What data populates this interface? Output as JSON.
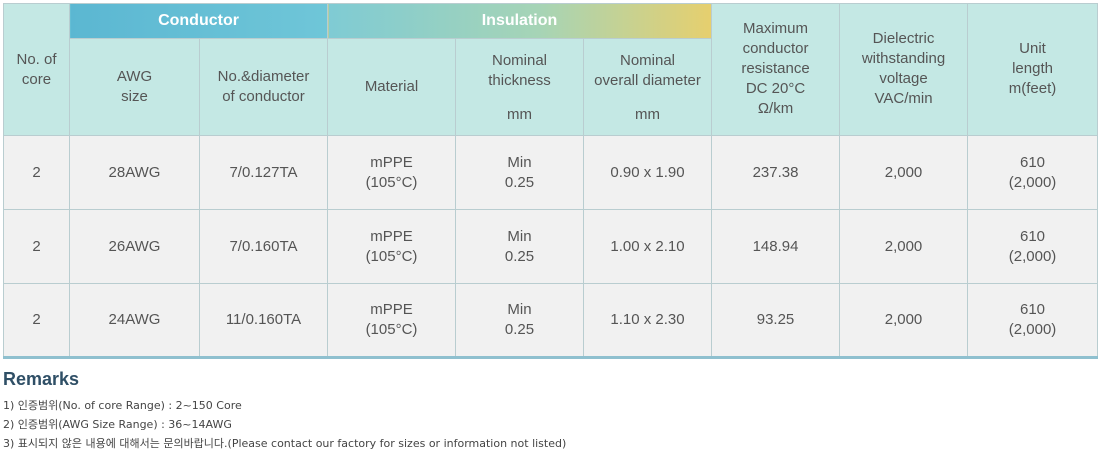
{
  "header": {
    "no_of_core": [
      "No. of",
      "core"
    ],
    "group_conductor": "Conductor",
    "group_insulation": "Insulation",
    "awg_size": [
      "AWG",
      "size"
    ],
    "no_diameter": [
      "No.&diameter",
      "of conductor"
    ],
    "material": "Material",
    "nominal_thickness": [
      "Nominal",
      "thickness"
    ],
    "nominal_thickness_unit": "mm",
    "nominal_overall": [
      "Nominal",
      "overall diameter"
    ],
    "nominal_overall_unit": "mm",
    "max_resistance": [
      "Maximum",
      "conductor",
      "resistance",
      "DC 20°C"
    ],
    "max_resistance_unit": "Ω/km",
    "dielectric": [
      "Dielectric",
      "withstanding",
      "voltage"
    ],
    "dielectric_unit": "VAC/min",
    "unit_length": [
      "Unit",
      "length"
    ],
    "unit_length_unit": "m(feet)"
  },
  "rows": [
    {
      "core": "2",
      "awg": "28AWG",
      "diameter": "7/0.127TA",
      "material": [
        "mPPE",
        "(105°C)"
      ],
      "thickness": [
        "Min",
        "0.25"
      ],
      "overall": "0.90 x 1.90",
      "resistance": "237.38",
      "voltage": "2,000",
      "length": [
        "610",
        "(2,000)"
      ]
    },
    {
      "core": "2",
      "awg": "26AWG",
      "diameter": "7/0.160TA",
      "material": [
        "mPPE",
        "(105°C)"
      ],
      "thickness": [
        "Min",
        "0.25"
      ],
      "overall": "1.00 x 2.10",
      "resistance": "148.94",
      "voltage": "2,000",
      "length": [
        "610",
        "(2,000)"
      ]
    },
    {
      "core": "2",
      "awg": "24AWG",
      "diameter": "11/0.160TA",
      "material": [
        "mPPE",
        "(105°C)"
      ],
      "thickness": [
        "Min",
        "0.25"
      ],
      "overall": "1.10 x 2.30",
      "resistance": "93.25",
      "voltage": "2,000",
      "length": [
        "610",
        "(2,000)"
      ]
    }
  ],
  "remarks": {
    "title": "Remarks",
    "notes": [
      "1) 인증범위(No. of core Range) : 2~150 Core",
      "2) 인증범위(AWG Size Range) : 36~14AWG",
      "3) 표시되지 않은 내용에 대해서는 문의바랍니다.(Please contact our factory for sizes or information not listed)"
    ]
  },
  "colors": {
    "header_bg": "#c4e8e4",
    "conductor_band": "#5bb7d2",
    "insulation_band_end": "#e6cf6e",
    "body_bg": "#f1f1f1",
    "remarks_title": "#2f4f66"
  }
}
